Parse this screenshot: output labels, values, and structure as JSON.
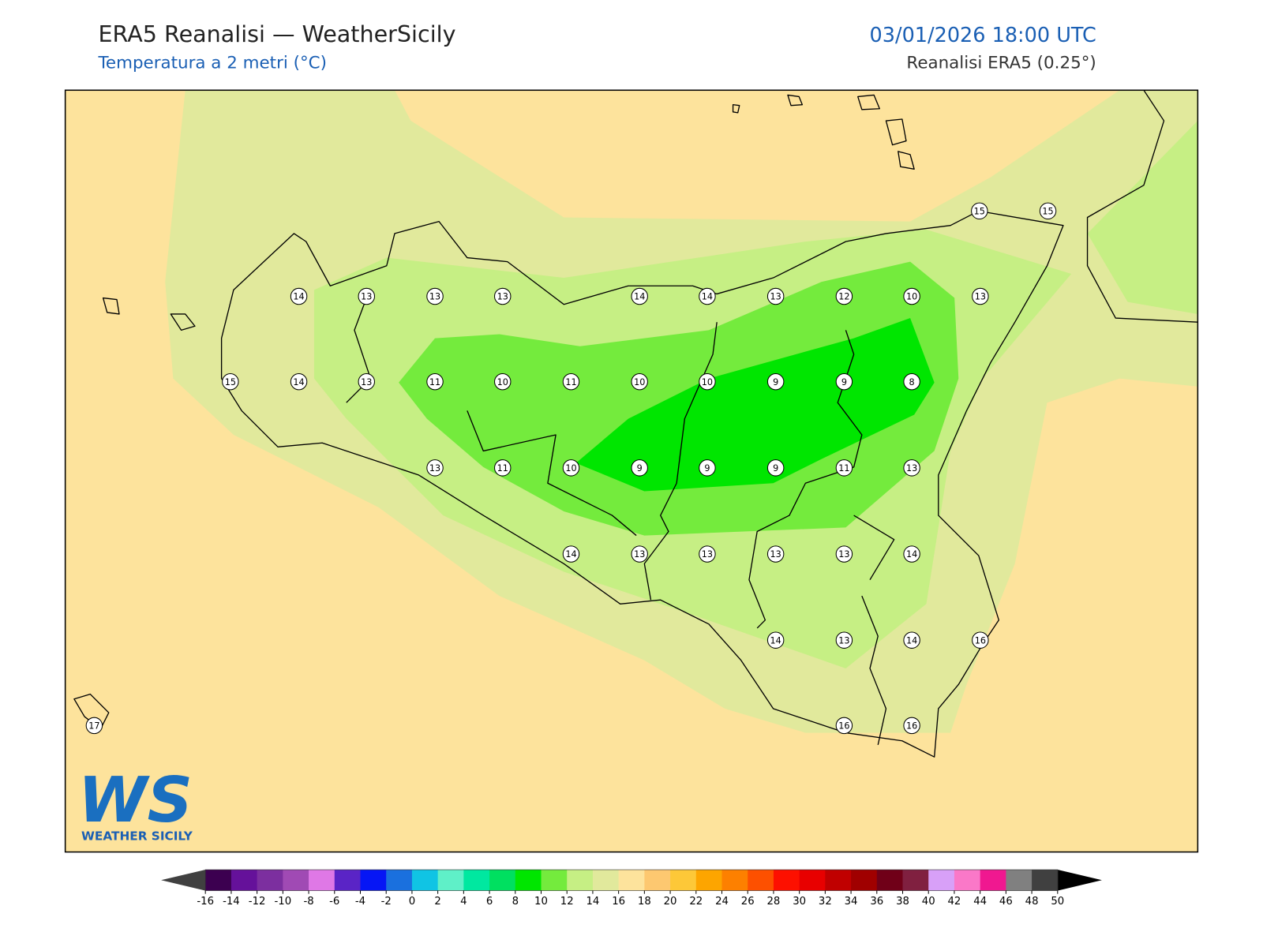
{
  "header": {
    "title": "ERA5 Reanalisi — WeatherSicily",
    "subtitle": "Temperatura a 2 metri (°C)",
    "datetime": "03/01/2026 18:00 UTC",
    "source": "Reanalisi ERA5 (0.25°)"
  },
  "stations": [
    15,
    15,
    14,
    13,
    13,
    13,
    14,
    14,
    13,
    12,
    10,
    13,
    15,
    14,
    13,
    11,
    10,
    11,
    10,
    10,
    9,
    9,
    8,
    13,
    11,
    10,
    9,
    9,
    9,
    11,
    13,
    14,
    13,
    13,
    13,
    13,
    14,
    14,
    13,
    14,
    16,
    17,
    16,
    16
  ],
  "logo": {
    "mark": "WS",
    "name": "WEATHER SICILY"
  },
  "colorbar": {
    "ticks": [
      -16,
      -14,
      -12,
      -10,
      -8,
      -6,
      -4,
      -2,
      0,
      2,
      4,
      6,
      8,
      10,
      12,
      14,
      16,
      18,
      20,
      22,
      24,
      26,
      28,
      30,
      32,
      34,
      36,
      38,
      40,
      42,
      44,
      46,
      48,
      50
    ],
    "colors": [
      "#3c0050",
      "#65119a",
      "#7c2f9f",
      "#a04ab4",
      "#df78e6",
      "#5a24c6",
      "#0616f5",
      "#1a70de",
      "#10c4e4",
      "#5ff0c8",
      "#00e8a0",
      "#00e060",
      "#00e600",
      "#74eb3d",
      "#c6ef84",
      "#e1e99c",
      "#fde39c",
      "#fdc870",
      "#fdc838",
      "#fda500",
      "#fd8000",
      "#fd5000",
      "#fd1000",
      "#e80000",
      "#c00000",
      "#a00000",
      "#700018",
      "#802040",
      "#d8a0f8",
      "#fa78c8",
      "#f01890",
      "#808080",
      "#404040"
    ],
    "under_color": "#404040",
    "over_color": "#000000"
  }
}
